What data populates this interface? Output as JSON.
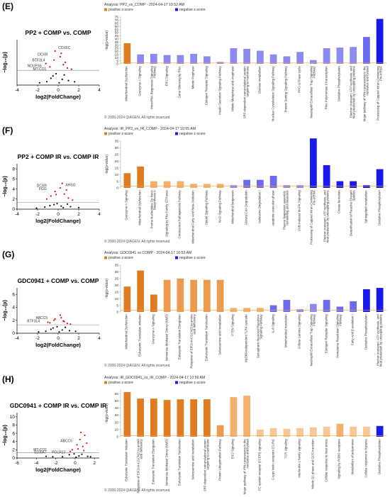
{
  "panel_labels": [
    "(E)",
    "(F)",
    "(G)",
    "(H)"
  ],
  "chart_data": [
    {
      "type": "scatter",
      "title": "PP2 + COMP vs. COMP",
      "xlabel": "log2(FoldChange)",
      "ylabel": "−log₁₀(p)",
      "xlim": [
        -4,
        4
      ],
      "ylim": [
        0,
        4
      ],
      "xticks": [
        -4,
        -2,
        0,
        2,
        4
      ],
      "yticks": [],
      "threshold": 1.3,
      "series": [
        {
          "color": "#e01010",
          "x": [
            0.3,
            -0.4,
            0.5,
            -0.8,
            0.9,
            -1.2,
            0.2,
            1.3,
            -0.3,
            0.7
          ],
          "y": [
            2.8,
            2.2,
            1.8,
            1.6,
            1.5,
            1.9,
            2.5,
            1.4,
            3.0,
            2.0
          ]
        },
        {
          "color": "#111111",
          "x": [
            -0.5,
            0.4,
            -1.1,
            1.0,
            -0.2,
            0.1,
            -1.8,
            1.6,
            0.6,
            -0.7
          ],
          "y": [
            0.8,
            0.5,
            0.3,
            0.4,
            1.0,
            0.2,
            0.2,
            0.3,
            0.9,
            0.6
          ]
        }
      ],
      "annotations": [
        {
          "text": "COX6C",
          "x": 0.6,
          "y": 3.2
        },
        {
          "text": "DCXR",
          "x": -1.5,
          "y": 2.6
        },
        {
          "text": "BTF3L4",
          "x": -1.9,
          "y": 2.1
        },
        {
          "text": "NDUFS6",
          "x": -2.3,
          "y": 1.6
        },
        {
          "text": "MT-CO1",
          "x": -1.8,
          "y": 1.3
        }
      ]
    },
    {
      "type": "bar",
      "title": "Analysis: PP2_vs_COMP - 2024-04-17 10:52 AM",
      "legend": [
        {
          "name": "positive z-score",
          "color": "#e07b1f"
        },
        {
          "name": "negative z-score",
          "color": "#1a1aee"
        }
      ],
      "ylabel": "-log(p-value)",
      "ylim": [
        0,
        75
      ],
      "yticks": [
        0,
        5,
        10,
        15,
        20,
        25,
        30,
        35,
        40,
        45,
        50,
        55,
        60,
        65,
        70,
        75
      ],
      "threshold": 1.3,
      "footer": "© 2000-2024 QIAGEN. All rights reserved.",
      "categories": [
        "Mitochondrial Dysfunction",
        "Granzyme A Signaling",
        "MicroRNA Biogenesis Signaling Pathway",
        "EIF2 Signaling",
        "Gene Silencing by RNA",
        "Mitotic Prophase",
        "Estrogen Receptor Signaling",
        "Insulin Secretion Signaling Pathway",
        "Mitotic Metaphase and Anaphase",
        "SRP-dependent cotranslational protein targeting to membrane",
        "Glucose metabolism",
        "Nuclear Cytoskeleton Signaling Pathway",
        "Protein Sorting Signaling Pathway",
        "RHO GTPase cycle",
        "Neutrophil Extracellular Trap Signaling Pathway",
        "RNA Polymerase II transcription",
        "Oxidative Phosphorylation",
        "Electron transport, ATP synthesis, and heat production by uncoupling proteins",
        "Major pathway of rRNA processing in the nucleolus and cytosol",
        "Processing of Capped Intron-Containing Pre-mRNA"
      ],
      "values": [
        33,
        15,
        16,
        14,
        14,
        16,
        12,
        3,
        25,
        24,
        21,
        15,
        12,
        19,
        6,
        25,
        26,
        27,
        43,
        72
      ],
      "colors": [
        "#e07b1f",
        "#8a8af0",
        "#8a8af0",
        "#8a8af0",
        "#8a8af0",
        "#8a8af0",
        "#8a8af0",
        "#8a8af0",
        "#8a8af0",
        "#8a8af0",
        "#8a8af0",
        "#8a8af0",
        "#8a8af0",
        "#8a8af0",
        "#8a8af0",
        "#8a8af0",
        "#8a8af0",
        "#8a8af0",
        "#6b6bf0",
        "#1a1aee"
      ]
    },
    {
      "type": "scatter",
      "title": "PP2 + COMP IR vs. COMP IR",
      "xlabel": "log2(FoldChange)",
      "ylabel": "−log₁₀(p)",
      "xlim": [
        -4,
        4
      ],
      "ylim": [
        0,
        9
      ],
      "xticks": [
        -4,
        -2,
        0,
        2,
        4
      ],
      "yticks": [
        0,
        2,
        4,
        6,
        8
      ],
      "threshold": 1.3,
      "series": [
        {
          "color": "#e01010",
          "x": [
            0.2,
            -0.3,
            0.6,
            -0.7,
            1.0,
            0.4,
            -1.1,
            0.8,
            -0.2,
            1.4
          ],
          "y": [
            4.2,
            3.5,
            3.0,
            2.6,
            2.2,
            5.1,
            2.0,
            3.8,
            2.9,
            1.8
          ]
        },
        {
          "color": "#111111",
          "x": [
            -0.4,
            0.3,
            -1.3,
            1.2,
            -0.1,
            0.5,
            -2.1,
            2.0,
            0.9,
            -0.8
          ],
          "y": [
            0.9,
            0.6,
            0.4,
            0.5,
            1.1,
            0.3,
            0.2,
            0.3,
            1.0,
            0.7
          ]
        }
      ],
      "annotations": [
        {
          "text": "DCXR",
          "x": -1.6,
          "y": 4.4
        },
        {
          "text": "FGG",
          "x": -1.5,
          "y": 3.8
        },
        {
          "text": "AHSG",
          "x": 1.2,
          "y": 4.6
        }
      ]
    },
    {
      "type": "bar",
      "title": "Analysis: IR_PP2_vs_IR_COMP - 2024-04-17 10:55 AM",
      "legend": [
        {
          "name": "positive z-score",
          "color": "#e07b1f"
        },
        {
          "name": "negative z-score",
          "color": "#1a1aee"
        }
      ],
      "ylabel": "-log(p-value)",
      "ylim": [
        0,
        35
      ],
      "yticks": [
        0,
        5,
        10,
        15,
        20,
        25,
        30,
        35
      ],
      "threshold": 1.3,
      "footer": "© 2000-2024 QIAGEN. All rights reserved.",
      "categories": [
        "Granzyme A Signaling",
        "Mitochondrial Dysfunction",
        "Purine Nucleotides De Novo Biosynthesis II",
        "Signaling by Rho Family GTPases",
        "Coronavirus Pathogenesis Pathway",
        "Mitochondrial Fatty Acid Beta-Oxidation",
        "Opioid Signaling Pathway",
        "NAD Signaling Pathway",
        "Mitochondrial biogenesis",
        "Glutaryl-CoA Degradation",
        "Isoleucine Degradation I",
        "Apoptotic execution phase",
        "Plasma lipoprotein assembly, remodeling and clearance",
        "UVB-Induced MAPK Signaling",
        "Processing of Capped Intron-Containing Pre-mRNA",
        "Electron transport, ATP synthesis, and heat production by uncoupling proteins",
        "Cristae formation",
        "Detoxification of Reactive Oxygen Species",
        "Sphingolipid metabolism",
        "Oxidative Phosphorylation"
      ],
      "values": [
        11,
        16,
        5,
        5,
        5,
        3,
        3,
        3,
        2,
        6,
        6,
        9,
        2,
        2,
        37,
        17,
        5,
        5,
        2,
        14
      ],
      "colors": [
        "#e07b1f",
        "#e07b1f",
        "#f3b06e",
        "#f3b06e",
        "#f3b06e",
        "#f3b06e",
        "#f3b06e",
        "#f3b06e",
        "#8a8af0",
        "#6b6bf0",
        "#6b6bf0",
        "#6b6bf0",
        "#8a8af0",
        "#8a8af0",
        "#1a1aee",
        "#1a1aee",
        "#1a1aee",
        "#1a1aee",
        "#1a1aee",
        "#1a1aee"
      ]
    },
    {
      "type": "scatter",
      "title": "GDC0941 + COMP vs. COMP",
      "xlabel": "log2(FoldChange)",
      "ylabel": "−log₁₀(p)",
      "xlim": [
        -4,
        4
      ],
      "ylim": [
        0,
        7
      ],
      "xticks": [
        -4,
        -2,
        0,
        2,
        4
      ],
      "yticks": [
        0,
        2,
        4,
        6
      ],
      "threshold": 1.3,
      "series": [
        {
          "color": "#e01010",
          "x": [
            0.3,
            -0.4,
            0.6,
            -0.8,
            0.9,
            0.2,
            -1.0,
            1.2,
            -0.3,
            0.5
          ],
          "y": [
            2.4,
            2.0,
            1.8,
            1.6,
            1.5,
            2.8,
            1.7,
            1.4,
            2.2,
            1.9
          ]
        },
        {
          "color": "#111111",
          "x": [
            -0.5,
            0.4,
            -1.2,
            1.1,
            -0.1,
            0.1,
            -1.9,
            1.7,
            0.7,
            -0.7
          ],
          "y": [
            0.8,
            0.5,
            0.3,
            0.4,
            1.0,
            0.2,
            0.2,
            0.3,
            0.9,
            0.6
          ]
        }
      ],
      "annotations": [
        {
          "text": "ABCC5",
          "x": -1.6,
          "y": 2.2
        },
        {
          "text": "BTF3L4",
          "x": -2.4,
          "y": 1.7
        }
      ]
    },
    {
      "type": "bar",
      "title": "Analysis: GDC0941 vs COMP - 2024-04-17 10:53 AM",
      "legend": [
        {
          "name": "positive z-score",
          "color": "#e07b1f"
        },
        {
          "name": "negative z-score",
          "color": "#1a1aee"
        }
      ],
      "ylabel": "-log(p-value)",
      "ylim": [
        0,
        35
      ],
      "yticks": [
        0,
        5,
        10,
        15,
        20,
        25,
        30,
        35
      ],
      "threshold": 1.3,
      "footer": "© 2000-2024 QIAGEN. All rights reserved.",
      "categories": [
        "Mitochondrial Dysfunction",
        "Eukaryotic Translation Initiation",
        "Granzyme A Signaling",
        "Nonsense-Mediated Decay (NMD)",
        "Eukaryotic Translation Elongation",
        "Response of EIF2AK4 (GCN2) to amino acid deficiency",
        "Eukaryotic Translation Termination",
        "Selenoamino acid metabolism",
        "PTEN Signaling",
        "MyD88-independent TLR4 cascade",
        "Semaphorin Neuronal Repulsive Signaling Pathway",
        "IL-8 Signaling",
        "Mitochondrial translation",
        "G-Beta Gamma Signaling",
        "Neutrophil Extracellular Trap Signaling Pathway",
        "Estrogen Receptor Signaling",
        "Hematoma Resolution Signaling Pathway",
        "Fatty Acid β-oxidation I",
        "Oxidative Phosphorylation",
        "Electron transport, ATP synthesis, and heat production by uncoupling proteins"
      ],
      "values": [
        19,
        31,
        13,
        24,
        25,
        24,
        24,
        24,
        3,
        3,
        3,
        5,
        9,
        2,
        6,
        9,
        4,
        8,
        17,
        18
      ],
      "colors": [
        "#e07b1f",
        "#e07b1f",
        "#e07b1f",
        "#ec9a4e",
        "#ec9a4e",
        "#ec9a4e",
        "#ec9a4e",
        "#ec9a4e",
        "#f3b06e",
        "#f3b06e",
        "#f3b06e",
        "#6b6bf0",
        "#6b6bf0",
        "#8a8af0",
        "#8a8af0",
        "#6b6bf0",
        "#6b6bf0",
        "#6b6bf0",
        "#1a1aee",
        "#1a1aee"
      ]
    },
    {
      "type": "scatter",
      "title": "GDC0941 + COMP IR vs. COMP IR",
      "xlabel": "log2(FoldChange)",
      "ylabel": "−log₁₀(p)",
      "xlim": [
        -6,
        2.5
      ],
      "ylim": [
        0,
        11
      ],
      "xticks": [
        -6,
        -4,
        -2,
        0,
        2
      ],
      "yticks": [
        0,
        2,
        4,
        6,
        8,
        10
      ],
      "threshold": 1.3,
      "series": [
        {
          "color": "#e01010",
          "x": [
            0.2,
            0.5,
            0.8,
            1.0,
            0.3,
            -0.3,
            1.2,
            0.6,
            0.9,
            -0.5
          ],
          "y": [
            3.2,
            4.5,
            2.8,
            5.5,
            2.2,
            2.0,
            3.6,
            6.2,
            1.8,
            1.6
          ]
        },
        {
          "color": "#111111",
          "x": [
            -0.6,
            0.4,
            -1.3,
            1.3,
            -0.1,
            0.1,
            -2.3,
            1.6,
            0.7,
            -3.0
          ],
          "y": [
            0.8,
            0.5,
            0.3,
            0.4,
            1.0,
            0.2,
            0.3,
            0.3,
            0.9,
            0.4
          ]
        }
      ],
      "annotations": [
        {
          "text": "ABCC5",
          "x": -0.9,
          "y": 3.9
        },
        {
          "text": "MT-CO1",
          "x": -3.6,
          "y": 1.7
        },
        {
          "text": "S100A7",
          "x": -3.6,
          "y": 1.1
        },
        {
          "text": "POLR2J",
          "x": -1.7,
          "y": 1.1
        }
      ]
    },
    {
      "type": "bar",
      "title": "Analysis: IR_GDC0941_vs_IR_COMP - 2024-04-17 10:56 AM",
      "legend": [
        {
          "name": "positive z-score",
          "color": "#e07b1f"
        },
        {
          "name": "negative z-score",
          "color": "#1a1aee"
        }
      ],
      "ylabel": "-log(p-value)",
      "ylim": [
        0,
        65
      ],
      "yticks": [
        0,
        10,
        20,
        30,
        40,
        50,
        60
      ],
      "threshold": 1.3,
      "footer": "© 2000-2024 QIAGEN. All rights reserved.",
      "categories": [
        "Eukaryotic Translation Initiation",
        "Response of EIF2AK4 (GCN2) to amino acid deficiency",
        "Eukaryotic Translation Elongation",
        "Nonsense-Mediated Decay (NMD)",
        "Eukaryotic Translation Termination",
        "Selenoamino acid metabolism",
        "SRP-dependent cotranslational protein targeting to membrane",
        "Protein Ubiquitination Pathway",
        "EIF2 Signaling",
        "Major pathway of rRNA processing in the nucleolus and cytosol",
        "FC epsilon receptor (FCERI) signaling",
        "C-type lectin receptors (CLRs)",
        "TCR signaling",
        "Interleukin-1 family signaling",
        "Mitotic G1 phase and G1/S transition",
        "Cellular response to heat stress",
        "Signaling by ROBO receptors",
        "Metabolism of polyamines",
        "Cellular response to hypoxia",
        "Oxidative Phosphorylation"
      ],
      "values": [
        62,
        53,
        53,
        51,
        52,
        52,
        52,
        16,
        55,
        57,
        10,
        12,
        11,
        12,
        13,
        14,
        18,
        14,
        14,
        15
      ],
      "colors": [
        "#e07b1f",
        "#e07b1f",
        "#e07b1f",
        "#e07b1f",
        "#e07b1f",
        "#e07b1f",
        "#e07b1f",
        "#ec9a4e",
        "#f3b06e",
        "#f3b06e",
        "#f6c894",
        "#f6c894",
        "#f6c894",
        "#f6c894",
        "#f6c894",
        "#f6c894",
        "#f3b06e",
        "#f6c894",
        "#f6c894",
        "#1a1aee"
      ]
    }
  ]
}
